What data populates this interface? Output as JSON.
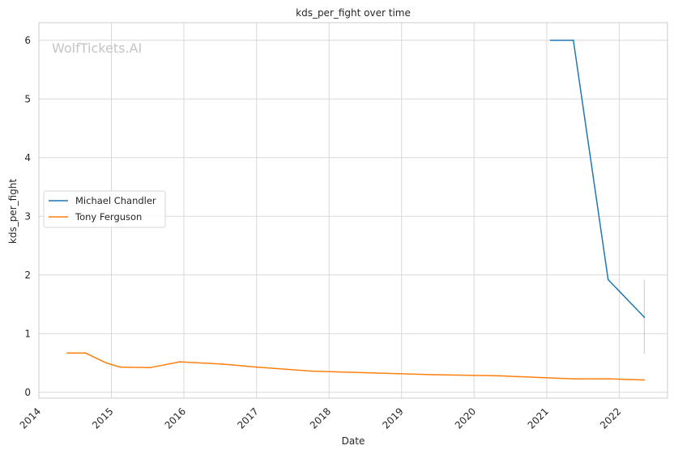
{
  "chart_data": {
    "type": "line",
    "title": "kds_per_fight over time",
    "xlabel": "Date",
    "ylabel": "kds_per_fight",
    "watermark": "WolfTickets.AI",
    "xlim": [
      "2014-01-01",
      "2022-09-01"
    ],
    "ylim": [
      -0.1,
      6.3
    ],
    "x_ticks": [
      "2014",
      "2015",
      "2016",
      "2017",
      "2018",
      "2019",
      "2020",
      "2021",
      "2022"
    ],
    "y_ticks": [
      0,
      1,
      2,
      3,
      4,
      5,
      6
    ],
    "grid": true,
    "legend_position": "center-left",
    "series": [
      {
        "name": "Michael Chandler",
        "color": "#1f77b4",
        "points": [
          {
            "x": "2021-01-20",
            "y": 6.0
          },
          {
            "x": "2021-05-15",
            "y": 6.0
          },
          {
            "x": "2021-11-06",
            "y": 1.92
          },
          {
            "x": "2022-05-07",
            "y": 1.28
          }
        ],
        "band": {
          "x": "2022-05-07",
          "low": 0.65,
          "high": 1.92
        }
      },
      {
        "name": "Tony Ferguson",
        "color": "#ff7f0e",
        "points": [
          {
            "x": "2014-05-24",
            "y": 0.67
          },
          {
            "x": "2014-08-23",
            "y": 0.67
          },
          {
            "x": "2014-12-06",
            "y": 0.5
          },
          {
            "x": "2015-02-14",
            "y": 0.43
          },
          {
            "x": "2015-07-15",
            "y": 0.42
          },
          {
            "x": "2015-12-11",
            "y": 0.52
          },
          {
            "x": "2016-07-13",
            "y": 0.48
          },
          {
            "x": "2017-01-01",
            "y": 0.43
          },
          {
            "x": "2017-10-07",
            "y": 0.36
          },
          {
            "x": "2019-06-08",
            "y": 0.3
          },
          {
            "x": "2020-05-09",
            "y": 0.28
          },
          {
            "x": "2020-12-12",
            "y": 0.25
          },
          {
            "x": "2021-05-15",
            "y": 0.23
          },
          {
            "x": "2021-11-06",
            "y": 0.23
          },
          {
            "x": "2022-05-07",
            "y": 0.21
          }
        ]
      }
    ]
  }
}
